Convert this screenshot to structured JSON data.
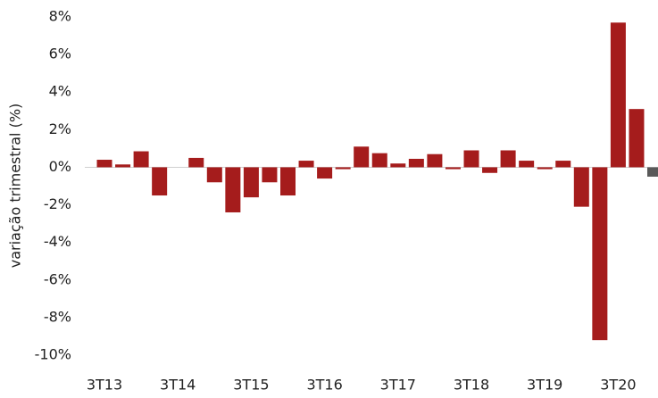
{
  "chart_data": {
    "type": "bar",
    "ylabel": "variação trimestral (%)",
    "categories": [
      "3T13",
      null,
      null,
      null,
      "3T14",
      null,
      null,
      null,
      "3T15",
      null,
      null,
      null,
      "3T16",
      null,
      null,
      null,
      "3T17",
      null,
      null,
      null,
      "3T18",
      null,
      null,
      null,
      "3T19",
      null,
      null,
      null,
      "3T20",
      null,
      null
    ],
    "values": [
      0.4,
      0.15,
      0.85,
      -1.5,
      0,
      0.5,
      -0.8,
      -2.4,
      -1.6,
      -0.8,
      -1.5,
      0.35,
      -0.6,
      -0.1,
      1.1,
      0.75,
      0.2,
      0.45,
      0.7,
      -0.1,
      0.9,
      -0.3,
      0.9,
      0.35,
      -0.1,
      0.35,
      -2.1,
      -9.2,
      7.7,
      3.1,
      -0.5
    ],
    "colors": [
      "#a51c1c",
      "#a51c1c",
      "#a51c1c",
      "#a51c1c",
      "#a51c1c",
      "#a51c1c",
      "#a51c1c",
      "#a51c1c",
      "#a51c1c",
      "#a51c1c",
      "#a51c1c",
      "#a51c1c",
      "#a51c1c",
      "#a51c1c",
      "#a51c1c",
      "#a51c1c",
      "#a51c1c",
      "#a51c1c",
      "#a51c1c",
      "#a51c1c",
      "#a51c1c",
      "#a51c1c",
      "#a51c1c",
      "#a51c1c",
      "#a51c1c",
      "#a51c1c",
      "#a51c1c",
      "#a51c1c",
      "#a51c1c",
      "#a51c1c",
      "#595959"
    ],
    "ylim": [
      -10,
      8
    ],
    "yticks": [
      {
        "value": 8,
        "label": "8%"
      },
      {
        "value": 6,
        "label": "6%"
      },
      {
        "value": 4,
        "label": "4%"
      },
      {
        "value": 2,
        "label": "2%"
      },
      {
        "value": 0,
        "label": "0%"
      },
      {
        "value": -2,
        "label": "-2%"
      },
      {
        "value": -4,
        "label": "-4%"
      },
      {
        "value": -6,
        "label": "-6%"
      },
      {
        "value": -8,
        "label": "-8%"
      },
      {
        "value": -10,
        "label": "-10%"
      }
    ],
    "grid": false
  }
}
